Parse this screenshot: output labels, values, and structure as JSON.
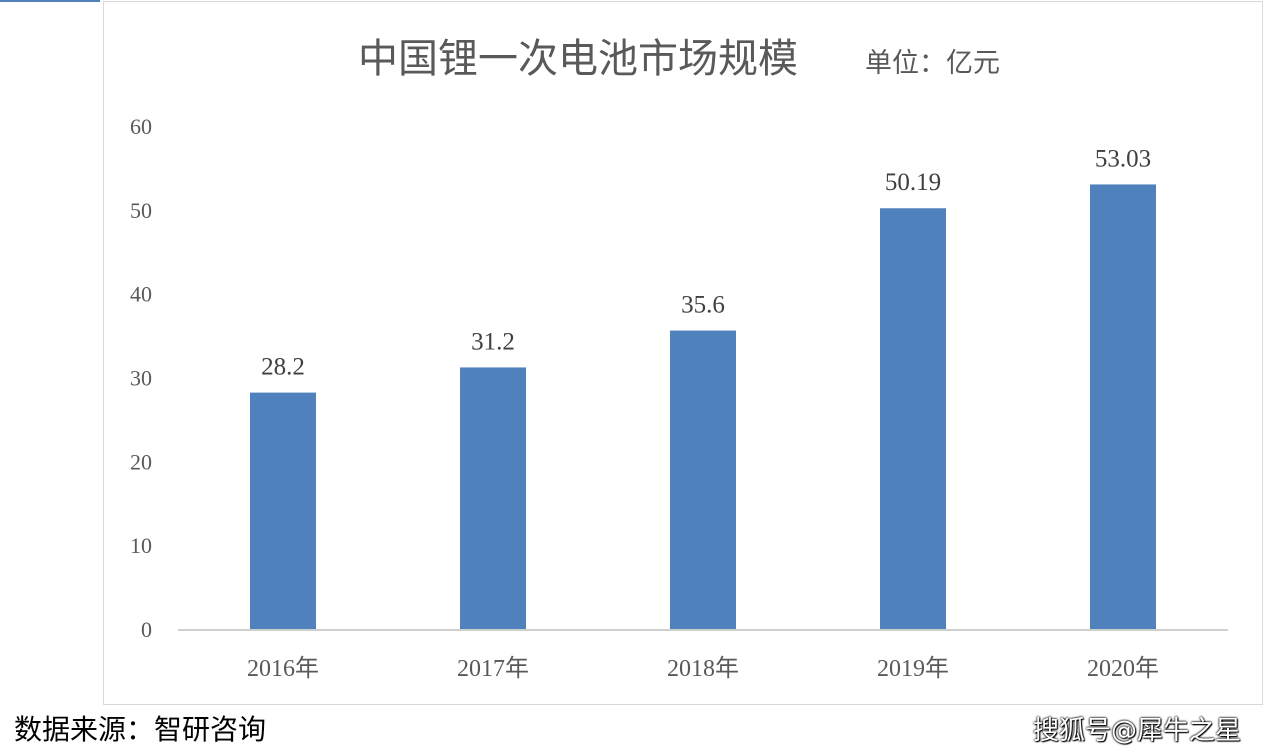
{
  "chart_data": {
    "type": "bar",
    "title": "中国锂一次电池市场规模",
    "unit": "单位：亿元",
    "categories": [
      "2016年",
      "2017年",
      "2018年",
      "2019年",
      "2020年"
    ],
    "values": [
      28.2,
      31.2,
      35.6,
      50.19,
      53.03
    ],
    "value_labels": [
      "28.2",
      "31.2",
      "35.6",
      "50.19",
      "53.03"
    ],
    "ylim": [
      0,
      60
    ],
    "yticks": [
      "0",
      "10",
      "20",
      "30",
      "40",
      "50",
      "60"
    ],
    "bar_color": "#4f81bd",
    "grid": false,
    "legend": "none"
  },
  "source": "数据来源：智研咨询",
  "watermark": "搜狐号@犀牛之星"
}
